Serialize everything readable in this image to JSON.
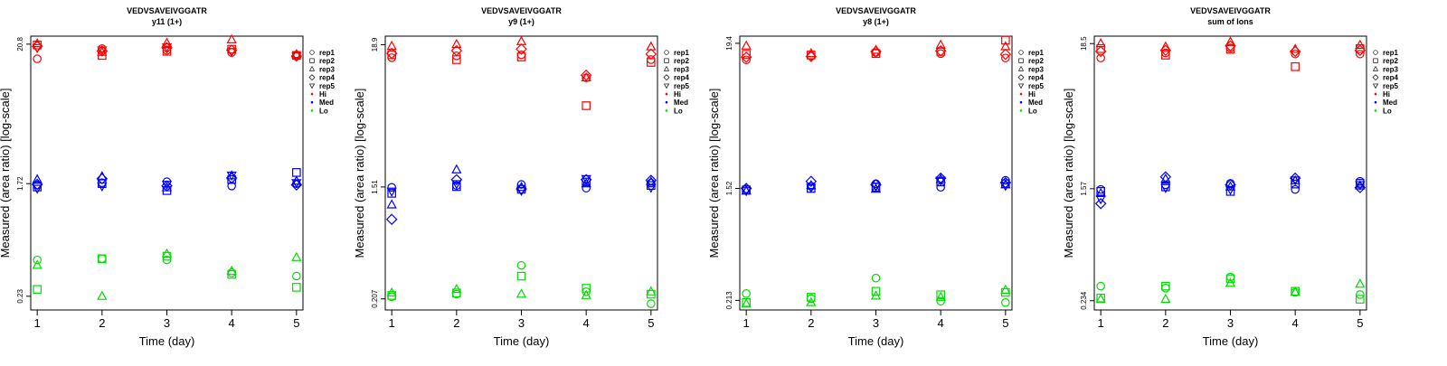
{
  "common": {
    "xlabel": "Time (day)",
    "ylabel": "Measured (area ratio) [log-scale]",
    "x_ticks": [
      "1",
      "2",
      "3",
      "4",
      "5"
    ]
  },
  "legend": {
    "reps": [
      {
        "label": "rep1",
        "shape": "circle"
      },
      {
        "label": "rep2",
        "shape": "square"
      },
      {
        "label": "rep3",
        "shape": "triangle-up"
      },
      {
        "label": "rep4",
        "shape": "diamond"
      },
      {
        "label": "rep5",
        "shape": "triangle-down"
      }
    ],
    "groups": [
      {
        "label": "Hi",
        "color": "#ff0000"
      },
      {
        "label": "Med",
        "color": "#0000ff"
      },
      {
        "label": "Lo",
        "color": "#00dd00"
      }
    ]
  },
  "chart_data": [
    {
      "type": "scatter",
      "title": "VEDVSAVEIVGGATR",
      "subtitle": "y11 (1+)",
      "xlabel": "Time (day)",
      "ylabel": "Measured (area ratio) [log-scale]",
      "y_scale": "log",
      "y_ticks": [
        "20.8",
        "1.72",
        "0.23"
      ],
      "ylim": [
        0.18,
        24.0
      ],
      "xlim": [
        0.9,
        5.1
      ],
      "series": [
        {
          "group": "Hi",
          "rep": "rep1",
          "x": [
            1,
            2,
            3,
            4,
            5
          ],
          "y": [
            16.0,
            19.2,
            18.6,
            17.9,
            17.2
          ]
        },
        {
          "group": "Hi",
          "rep": "rep2",
          "x": [
            1,
            2,
            3,
            4,
            5
          ],
          "y": [
            20.5,
            17.0,
            18.3,
            19.0,
            17.0
          ]
        },
        {
          "group": "Hi",
          "rep": "rep3",
          "x": [
            1,
            2,
            3,
            4,
            5
          ],
          "y": [
            21.0,
            18.0,
            21.2,
            22.5,
            17.3
          ]
        },
        {
          "group": "Hi",
          "rep": "rep4",
          "x": [
            1,
            2,
            3,
            4,
            5
          ],
          "y": [
            20.0,
            18.4,
            19.5,
            18.7,
            16.8
          ]
        },
        {
          "group": "Hi",
          "rep": "rep5",
          "x": [
            1,
            2,
            3,
            4,
            5
          ],
          "y": [
            19.5,
            18.7,
            19.8,
            18.2,
            16.9
          ]
        },
        {
          "group": "Med",
          "rep": "rep1",
          "x": [
            1,
            2,
            3,
            4,
            5
          ],
          "y": [
            1.68,
            1.75,
            1.78,
            1.65,
            1.72
          ]
        },
        {
          "group": "Med",
          "rep": "rep2",
          "x": [
            1,
            2,
            3,
            4,
            5
          ],
          "y": [
            1.62,
            1.72,
            1.52,
            1.85,
            2.1
          ]
        },
        {
          "group": "Med",
          "rep": "rep3",
          "x": [
            1,
            2,
            3,
            4,
            5
          ],
          "y": [
            1.85,
            1.95,
            1.6,
            1.98,
            1.8
          ]
        },
        {
          "group": "Med",
          "rep": "rep4",
          "x": [
            1,
            2,
            3,
            4,
            5
          ],
          "y": [
            1.7,
            1.88,
            1.65,
            1.9,
            1.68
          ]
        },
        {
          "group": "Med",
          "rep": "rep5",
          "x": [
            1,
            2,
            3,
            4,
            5
          ],
          "y": [
            1.58,
            1.65,
            1.7,
            2.0,
            1.75
          ]
        },
        {
          "group": "Lo",
          "rep": "rep1",
          "x": [
            1,
            2,
            3,
            4,
            5
          ],
          "y": [
            0.44,
            0.45,
            0.44,
            0.35,
            0.33
          ]
        },
        {
          "group": "Lo",
          "rep": "rep2",
          "x": [
            1,
            2,
            3,
            4,
            5
          ],
          "y": [
            0.26,
            0.45,
            0.47,
            0.34,
            0.27
          ]
        },
        {
          "group": "Lo",
          "rep": "rep3",
          "x": [
            1,
            2,
            3,
            4,
            5
          ],
          "y": [
            0.4,
            0.23,
            0.49,
            0.36,
            0.46
          ]
        }
      ]
    },
    {
      "type": "scatter",
      "title": "VEDVSAVEIVGGATR",
      "subtitle": "y9 (1+)",
      "xlabel": "Time (day)",
      "ylabel": "Measured (area ratio) [log-scale]",
      "y_scale": "log",
      "y_ticks": [
        "18.9",
        "1.51",
        "0.207"
      ],
      "ylim": [
        0.17,
        22.0
      ],
      "xlim": [
        0.9,
        5.1
      ],
      "series": [
        {
          "group": "Hi",
          "rep": "rep1",
          "x": [
            1,
            2,
            3,
            4,
            5
          ],
          "y": [
            15.0,
            15.5,
            15.8,
            10.5,
            14.5
          ]
        },
        {
          "group": "Hi",
          "rep": "rep2",
          "x": [
            1,
            2,
            3,
            4,
            5
          ],
          "y": [
            15.8,
            14.5,
            15.2,
            6.4,
            13.8
          ]
        },
        {
          "group": "Hi",
          "rep": "rep3",
          "x": [
            1,
            2,
            3,
            4,
            5
          ],
          "y": [
            18.4,
            19.0,
            20.0,
            10.5,
            18.2
          ]
        },
        {
          "group": "Hi",
          "rep": "rep4",
          "x": [
            1,
            2,
            3,
            4,
            5
          ],
          "y": [
            16.2,
            17.0,
            17.5,
            11.0,
            16.0
          ]
        },
        {
          "group": "Med",
          "rep": "rep1",
          "x": [
            1,
            2,
            3,
            4,
            5
          ],
          "y": [
            1.5,
            1.55,
            1.58,
            1.48,
            1.62
          ]
        },
        {
          "group": "Med",
          "rep": "rep2",
          "x": [
            1,
            2,
            3,
            4,
            5
          ],
          "y": [
            1.35,
            1.52,
            1.45,
            1.65,
            1.55
          ]
        },
        {
          "group": "Med",
          "rep": "rep3",
          "x": [
            1,
            2,
            3,
            4,
            5
          ],
          "y": [
            1.1,
            2.05,
            1.5,
            1.6,
            1.65
          ]
        },
        {
          "group": "Med",
          "rep": "rep4",
          "x": [
            1,
            2,
            3,
            4,
            5
          ],
          "y": [
            0.85,
            1.72,
            1.46,
            1.72,
            1.7
          ]
        },
        {
          "group": "Med",
          "rep": "rep5",
          "x": [
            1,
            2,
            3,
            4,
            5
          ],
          "y": [
            1.4,
            1.6,
            1.42,
            1.75,
            1.5
          ]
        },
        {
          "group": "Lo",
          "rep": "rep1",
          "x": [
            1,
            2,
            3,
            4,
            5
          ],
          "y": [
            0.215,
            0.225,
            0.375,
            0.235,
            0.19
          ]
        },
        {
          "group": "Lo",
          "rep": "rep2",
          "x": [
            1,
            2,
            3,
            4,
            5
          ],
          "y": [
            0.22,
            0.23,
            0.31,
            0.25,
            0.225
          ]
        },
        {
          "group": "Lo",
          "rep": "rep3",
          "x": [
            1,
            2,
            3,
            4,
            5
          ],
          "y": [
            0.23,
            0.245,
            0.225,
            0.22,
            0.235
          ]
        }
      ]
    },
    {
      "type": "scatter",
      "title": "VEDVSAVEIVGGATR",
      "subtitle": "y8 (1+)",
      "xlabel": "Time (day)",
      "ylabel": "Measured (area ratio) [log-scale]",
      "y_scale": "log",
      "y_ticks": [
        "19.4",
        "1.52",
        "0.213"
      ],
      "ylim": [
        0.18,
        22.0
      ],
      "xlim": [
        0.9,
        5.1
      ],
      "series": [
        {
          "group": "Hi",
          "rep": "rep1",
          "x": [
            1,
            2,
            3,
            4,
            5
          ],
          "y": [
            14.5,
            15.5,
            16.5,
            16.2,
            15.0
          ]
        },
        {
          "group": "Hi",
          "rep": "rep2",
          "x": [
            1,
            2,
            3,
            4,
            5
          ],
          "y": [
            16.0,
            15.8,
            16.2,
            16.8,
            20.5
          ]
        },
        {
          "group": "Hi",
          "rep": "rep3",
          "x": [
            1,
            2,
            3,
            4,
            5
          ],
          "y": [
            18.5,
            16.2,
            17.2,
            18.8,
            18.3
          ]
        },
        {
          "group": "Hi",
          "rep": "rep4",
          "x": [
            1,
            2,
            3,
            4,
            5
          ],
          "y": [
            15.2,
            15.4,
            16.8,
            17.0,
            16.0
          ]
        },
        {
          "group": "Med",
          "rep": "rep1",
          "x": [
            1,
            2,
            3,
            4,
            5
          ],
          "y": [
            1.5,
            1.58,
            1.65,
            1.55,
            1.75
          ]
        },
        {
          "group": "Med",
          "rep": "rep2",
          "x": [
            1,
            2,
            3,
            4,
            5
          ],
          "y": [
            1.48,
            1.52,
            1.55,
            1.7,
            1.65
          ]
        },
        {
          "group": "Med",
          "rep": "rep3",
          "x": [
            1,
            2,
            3,
            4,
            5
          ],
          "y": [
            1.45,
            1.6,
            1.5,
            1.78,
            1.62
          ]
        },
        {
          "group": "Med",
          "rep": "rep4",
          "x": [
            1,
            2,
            3,
            4,
            5
          ],
          "y": [
            1.52,
            1.72,
            1.62,
            1.82,
            1.68
          ]
        },
        {
          "group": "Med",
          "rep": "rep5",
          "x": [
            1,
            2,
            3,
            4,
            5
          ],
          "y": [
            1.46,
            1.55,
            1.58,
            1.75,
            1.6
          ]
        },
        {
          "group": "Lo",
          "rep": "rep1",
          "x": [
            1,
            2,
            3,
            4,
            5
          ],
          "y": [
            0.24,
            0.22,
            0.315,
            0.21,
            0.205
          ]
        },
        {
          "group": "Lo",
          "rep": "rep2",
          "x": [
            1,
            2,
            3,
            4,
            5
          ],
          "y": [
            0.205,
            0.225,
            0.25,
            0.235,
            0.245
          ]
        },
        {
          "group": "Lo",
          "rep": "rep3",
          "x": [
            1,
            2,
            3,
            4,
            5
          ],
          "y": [
            0.2,
            0.205,
            0.23,
            0.225,
            0.255
          ]
        }
      ]
    },
    {
      "type": "scatter",
      "title": "VEDVSAVEIVGGATR",
      "subtitle": "sum of Ions",
      "xlabel": "Time (day)",
      "ylabel": "Measured (area ratio) [log-scale]",
      "y_scale": "log",
      "y_ticks": [
        "18.5",
        "1.57",
        "0.234"
      ],
      "ylim": [
        0.2,
        21.0
      ],
      "xlim": [
        0.9,
        5.1
      ],
      "series": [
        {
          "group": "Hi",
          "rep": "rep1",
          "x": [
            1,
            2,
            3,
            4,
            5
          ],
          "y": [
            14.5,
            15.8,
            17.2,
            15.5,
            15.5
          ]
        },
        {
          "group": "Hi",
          "rep": "rep2",
          "x": [
            1,
            2,
            3,
            4,
            5
          ],
          "y": [
            17.0,
            15.2,
            16.8,
            12.5,
            17.0
          ]
        },
        {
          "group": "Hi",
          "rep": "rep3",
          "x": [
            1,
            2,
            3,
            4,
            5
          ],
          "y": [
            18.5,
            17.5,
            19.0,
            16.8,
            18.0
          ]
        },
        {
          "group": "Hi",
          "rep": "rep4",
          "x": [
            1,
            2,
            3,
            4,
            5
          ],
          "y": [
            16.2,
            16.5,
            17.8,
            16.2,
            16.5
          ]
        },
        {
          "group": "Med",
          "rep": "rep1",
          "x": [
            1,
            2,
            3,
            4,
            5
          ],
          "y": [
            1.55,
            1.68,
            1.72,
            1.55,
            1.78
          ]
        },
        {
          "group": "Med",
          "rep": "rep2",
          "x": [
            1,
            2,
            3,
            4,
            5
          ],
          "y": [
            1.5,
            1.62,
            1.5,
            1.7,
            1.72
          ]
        },
        {
          "group": "Med",
          "rep": "rep3",
          "x": [
            1,
            2,
            3,
            4,
            5
          ],
          "y": [
            1.45,
            1.85,
            1.62,
            1.8,
            1.65
          ]
        },
        {
          "group": "Med",
          "rep": "rep4",
          "x": [
            1,
            2,
            3,
            4,
            5
          ],
          "y": [
            1.22,
            1.92,
            1.68,
            1.88,
            1.6
          ]
        },
        {
          "group": "Med",
          "rep": "rep5",
          "x": [
            1,
            2,
            3,
            4,
            5
          ],
          "y": [
            1.32,
            1.6,
            1.55,
            1.82,
            1.68
          ]
        },
        {
          "group": "Lo",
          "rep": "rep1",
          "x": [
            1,
            2,
            3,
            4,
            5
          ],
          "y": [
            0.3,
            0.29,
            0.35,
            0.27,
            0.26
          ]
        },
        {
          "group": "Lo",
          "rep": "rep2",
          "x": [
            1,
            2,
            3,
            4,
            5
          ],
          "y": [
            0.245,
            0.3,
            0.34,
            0.275,
            0.24
          ]
        },
        {
          "group": "Lo",
          "rep": "rep3",
          "x": [
            1,
            2,
            3,
            4,
            5
          ],
          "y": [
            0.24,
            0.24,
            0.315,
            0.27,
            0.31
          ]
        }
      ]
    }
  ]
}
